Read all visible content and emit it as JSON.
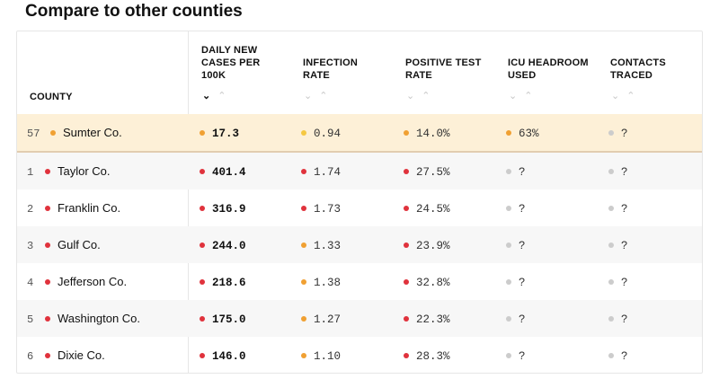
{
  "title": "Compare to other counties",
  "columns": [
    {
      "label_lines": [
        "COUNTY"
      ],
      "sortable": false
    },
    {
      "label_lines": [
        "DAILY NEW",
        "CASES PER",
        "100K"
      ],
      "sort": "desc"
    },
    {
      "label_lines": [
        "INFECTION",
        "RATE"
      ],
      "sort": "none"
    },
    {
      "label_lines": [
        "POSITIVE TEST",
        "RATE"
      ],
      "sort": "none"
    },
    {
      "label_lines": [
        "ICU HEADROOM",
        "USED"
      ],
      "sort": "none"
    },
    {
      "label_lines": [
        "CONTACTS",
        "TRACED"
      ],
      "sort": "none"
    }
  ],
  "sort_icons": {
    "down": "⌄",
    "up": "⌃"
  },
  "colors": {
    "red": "#e0323c",
    "orange": "#f0a032",
    "yellow": "#f5c842",
    "gray": "#cccccc"
  },
  "rows": [
    {
      "rank": "57",
      "name": "Sumter Co.",
      "dot": "orange",
      "highlight": true,
      "cases": {
        "value": "17.3",
        "dot": "orange"
      },
      "infection": {
        "value": "0.94",
        "dot": "yellow"
      },
      "positive": {
        "value": "14.0%",
        "dot": "orange"
      },
      "icu": {
        "value": "63%",
        "dot": "orange"
      },
      "contacts": {
        "value": "?",
        "dot": "gray"
      }
    },
    {
      "rank": "1",
      "name": "Taylor Co.",
      "dot": "red",
      "cases": {
        "value": "401.4",
        "dot": "red"
      },
      "infection": {
        "value": "1.74",
        "dot": "red"
      },
      "positive": {
        "value": "27.5%",
        "dot": "red"
      },
      "icu": {
        "value": "?",
        "dot": "gray"
      },
      "contacts": {
        "value": "?",
        "dot": "gray"
      }
    },
    {
      "rank": "2",
      "name": "Franklin Co.",
      "dot": "red",
      "cases": {
        "value": "316.9",
        "dot": "red"
      },
      "infection": {
        "value": "1.73",
        "dot": "red"
      },
      "positive": {
        "value": "24.5%",
        "dot": "red"
      },
      "icu": {
        "value": "?",
        "dot": "gray"
      },
      "contacts": {
        "value": "?",
        "dot": "gray"
      }
    },
    {
      "rank": "3",
      "name": "Gulf Co.",
      "dot": "red",
      "cases": {
        "value": "244.0",
        "dot": "red"
      },
      "infection": {
        "value": "1.33",
        "dot": "orange"
      },
      "positive": {
        "value": "23.9%",
        "dot": "red"
      },
      "icu": {
        "value": "?",
        "dot": "gray"
      },
      "contacts": {
        "value": "?",
        "dot": "gray"
      }
    },
    {
      "rank": "4",
      "name": "Jefferson Co.",
      "dot": "red",
      "cases": {
        "value": "218.6",
        "dot": "red"
      },
      "infection": {
        "value": "1.38",
        "dot": "orange"
      },
      "positive": {
        "value": "32.8%",
        "dot": "red"
      },
      "icu": {
        "value": "?",
        "dot": "gray"
      },
      "contacts": {
        "value": "?",
        "dot": "gray"
      }
    },
    {
      "rank": "5",
      "name": "Washington Co.",
      "dot": "red",
      "cases": {
        "value": "175.0",
        "dot": "red"
      },
      "infection": {
        "value": "1.27",
        "dot": "orange"
      },
      "positive": {
        "value": "22.3%",
        "dot": "red"
      },
      "icu": {
        "value": "?",
        "dot": "gray"
      },
      "contacts": {
        "value": "?",
        "dot": "gray"
      }
    },
    {
      "rank": "6",
      "name": "Dixie Co.",
      "dot": "red",
      "cases": {
        "value": "146.0",
        "dot": "red"
      },
      "infection": {
        "value": "1.10",
        "dot": "orange"
      },
      "positive": {
        "value": "28.3%",
        "dot": "red"
      },
      "icu": {
        "value": "?",
        "dot": "gray"
      },
      "contacts": {
        "value": "?",
        "dot": "gray"
      }
    }
  ]
}
